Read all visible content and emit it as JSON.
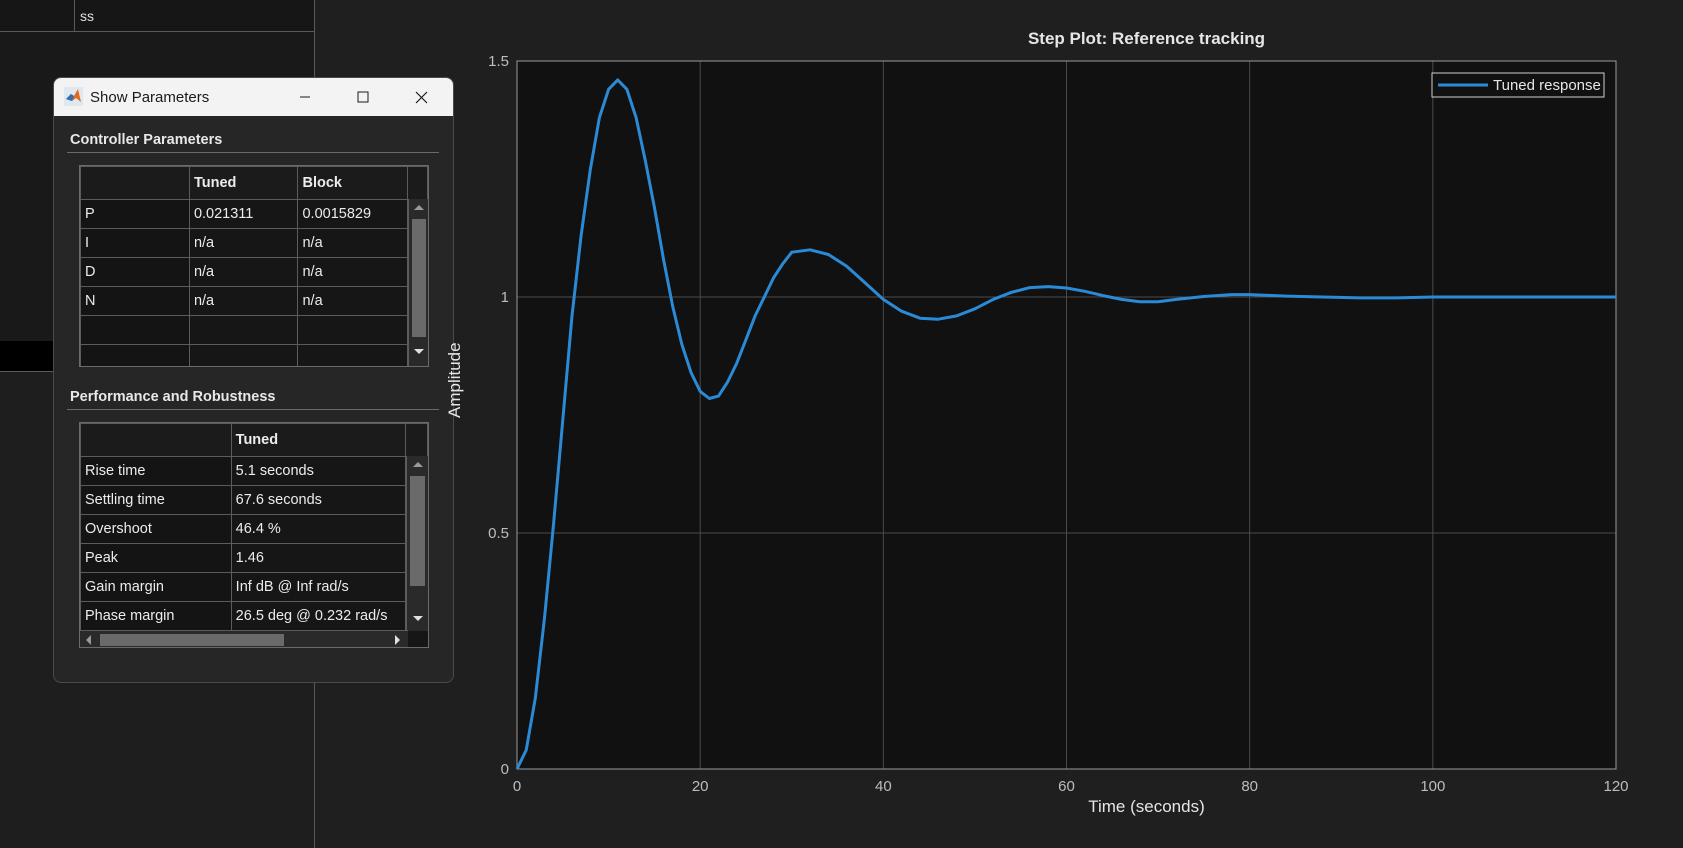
{
  "background_table": {
    "cell_text": "ss"
  },
  "dialog": {
    "title": "Show  Parameters",
    "controller_section": {
      "title": "Controller Parameters",
      "columns": [
        "",
        "Tuned",
        "Block"
      ],
      "rows": [
        [
          "P",
          "0.021311",
          "0.0015829"
        ],
        [
          "I",
          "n/a",
          "n/a"
        ],
        [
          "D",
          "n/a",
          "n/a"
        ],
        [
          "N",
          "n/a",
          "n/a"
        ],
        [
          "",
          "",
          ""
        ],
        [
          "",
          "",
          ""
        ]
      ]
    },
    "performance_section": {
      "title": "Performance and Robustness",
      "columns": [
        "",
        "Tuned"
      ],
      "rows": [
        [
          "Rise time",
          "5.1 seconds"
        ],
        [
          "Settling time",
          "67.6 seconds"
        ],
        [
          "Overshoot",
          "46.4 %"
        ],
        [
          "Peak",
          "1.46"
        ],
        [
          "Gain margin",
          "Inf dB @ Inf rad/s"
        ],
        [
          "Phase margin",
          "26.5 deg @ 0.232 rad/s"
        ]
      ]
    }
  },
  "colors": {
    "line": "#2b8ad6",
    "axes_bg": "#111111",
    "grid": "#4a4a4a"
  },
  "chart_data": {
    "type": "line",
    "title": "Step Plot: Reference tracking",
    "xlabel": "Time (seconds)",
    "ylabel": "Amplitude",
    "xlim": [
      0,
      120
    ],
    "ylim": [
      0,
      1.5
    ],
    "xticks": [
      "0",
      "20",
      "40",
      "60",
      "80",
      "100",
      "120"
    ],
    "yticks": [
      "0",
      "0.5",
      "1",
      "1.5"
    ],
    "grid": true,
    "legend_position": "top-right",
    "series": [
      {
        "name": "Tuned response",
        "x": [
          0,
          1,
          2,
          3,
          4,
          5,
          6,
          7,
          8,
          9,
          10,
          11,
          12,
          13,
          14,
          15,
          16,
          17,
          18,
          19,
          20,
          21,
          22,
          23,
          24,
          25,
          26,
          27,
          28,
          29,
          30,
          32,
          34,
          36,
          38,
          40,
          42,
          44,
          46,
          48,
          50,
          52,
          54,
          56,
          58,
          60,
          62,
          64,
          66,
          68,
          70,
          72,
          75,
          78,
          80,
          84,
          88,
          92,
          96,
          100,
          105,
          110,
          115,
          120
        ],
        "y": [
          0,
          0.04,
          0.15,
          0.32,
          0.52,
          0.74,
          0.96,
          1.13,
          1.27,
          1.38,
          1.44,
          1.46,
          1.44,
          1.38,
          1.29,
          1.19,
          1.08,
          0.98,
          0.9,
          0.84,
          0.8,
          0.785,
          0.79,
          0.82,
          0.86,
          0.91,
          0.96,
          1.0,
          1.04,
          1.07,
          1.095,
          1.1,
          1.09,
          1.065,
          1.03,
          0.995,
          0.97,
          0.955,
          0.953,
          0.96,
          0.975,
          0.995,
          1.01,
          1.02,
          1.022,
          1.019,
          1.012,
          1.003,
          0.995,
          0.99,
          0.99,
          0.995,
          1.001,
          1.005,
          1.005,
          1.002,
          1.0,
          0.998,
          0.998,
          1.0,
          1.0,
          1.0,
          1.0,
          1.0
        ]
      }
    ]
  }
}
